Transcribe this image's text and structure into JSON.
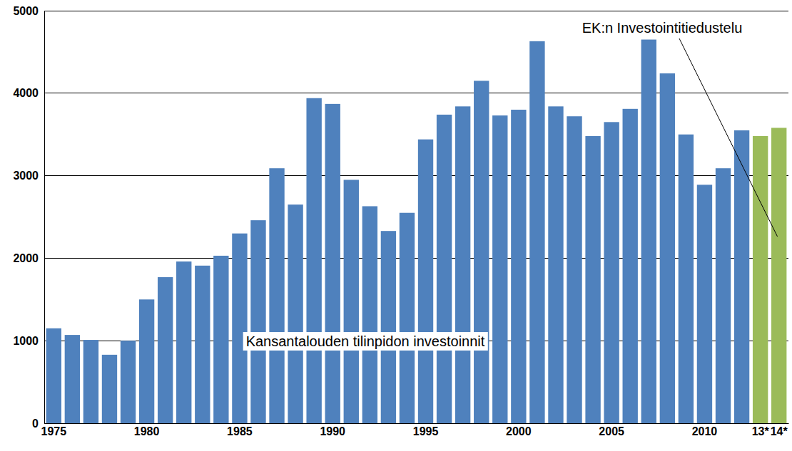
{
  "chart_data": {
    "type": "bar",
    "categories": [
      "1975",
      null,
      null,
      null,
      null,
      "1980",
      null,
      null,
      null,
      null,
      "1985",
      null,
      null,
      null,
      null,
      "1990",
      null,
      null,
      null,
      null,
      "1995",
      null,
      null,
      null,
      null,
      "2000",
      null,
      null,
      null,
      null,
      "2005",
      null,
      null,
      null,
      null,
      "2010",
      null,
      null,
      "13*",
      "14*"
    ],
    "values": [
      1150,
      1070,
      1010,
      830,
      1000,
      1500,
      1770,
      1960,
      1910,
      2030,
      2300,
      2460,
      3090,
      2650,
      3940,
      3870,
      2950,
      2630,
      2330,
      2550,
      3440,
      3740,
      3840,
      4150,
      3730,
      3800,
      4630,
      3840,
      3720,
      3480,
      3650,
      3810,
      4650,
      4240,
      3500,
      2890,
      3090,
      3550,
      3480,
      3580
    ],
    "colors": [
      "#4f81bd",
      "#4f81bd",
      "#4f81bd",
      "#4f81bd",
      "#4f81bd",
      "#4f81bd",
      "#4f81bd",
      "#4f81bd",
      "#4f81bd",
      "#4f81bd",
      "#4f81bd",
      "#4f81bd",
      "#4f81bd",
      "#4f81bd",
      "#4f81bd",
      "#4f81bd",
      "#4f81bd",
      "#4f81bd",
      "#4f81bd",
      "#4f81bd",
      "#4f81bd",
      "#4f81bd",
      "#4f81bd",
      "#4f81bd",
      "#4f81bd",
      "#4f81bd",
      "#4f81bd",
      "#4f81bd",
      "#4f81bd",
      "#4f81bd",
      "#4f81bd",
      "#4f81bd",
      "#4f81bd",
      "#4f81bd",
      "#4f81bd",
      "#4f81bd",
      "#4f81bd",
      "#4f81bd",
      "#9bbb59",
      "#9bbb59"
    ],
    "ylim": [
      0,
      5000
    ],
    "yticks": [
      0,
      1000,
      2000,
      3000,
      4000,
      5000
    ],
    "grid": true,
    "annotations": [
      {
        "text": "Kansantalouden tilinpidon investoinnit"
      },
      {
        "text": "EK:n Investointitiedustelu"
      }
    ]
  }
}
